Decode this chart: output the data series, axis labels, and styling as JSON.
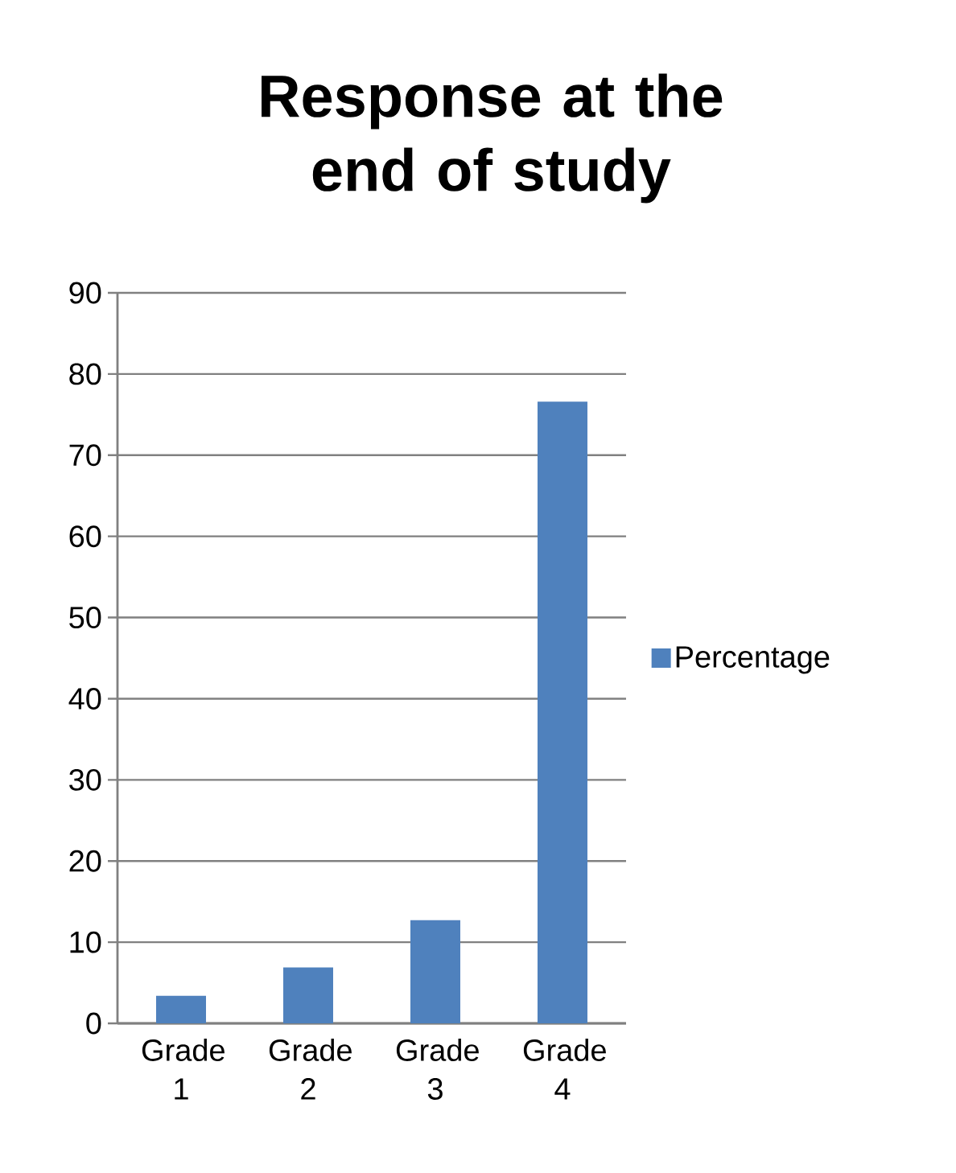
{
  "chart_data": {
    "type": "bar",
    "title": "Response at the end of study",
    "categories": [
      "Grade 1",
      "Grade 2",
      "Grade 3",
      "Grade 4"
    ],
    "series": [
      {
        "name": "Percentage",
        "color": "#4f81bd",
        "values": [
          3.4,
          6.9,
          12.7,
          76.6
        ]
      }
    ],
    "ylim": [
      0,
      90
    ],
    "yticks": [
      0,
      10,
      20,
      30,
      40,
      50,
      60,
      70,
      80,
      90
    ],
    "grid": "y",
    "legend": "right"
  }
}
